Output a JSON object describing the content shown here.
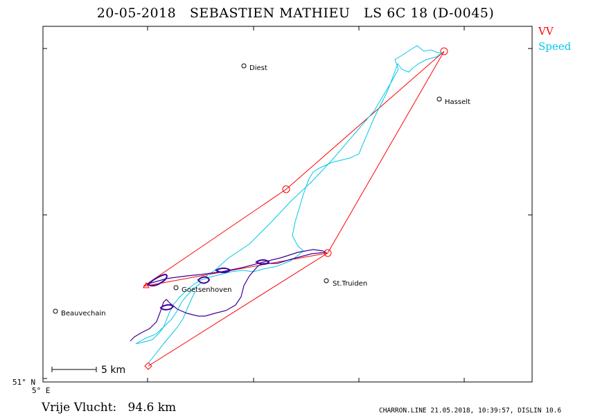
{
  "title": "20-05-2018   SEBASTIEN MATHIEU   LS 6C 18 (D-0045)",
  "legend": {
    "vv": "VV",
    "speed": "Speed",
    "vv_color": "#ff0000",
    "speed_color": "#00c8e8",
    "climb_color": "#3c0096"
  },
  "axes": {
    "lat_label": "51° N",
    "lon_label": "5° E"
  },
  "places": [
    {
      "name": "Diest"
    },
    {
      "name": "Hasselt"
    },
    {
      "name": "St.Truiden"
    },
    {
      "name": "Goetsenhoven"
    },
    {
      "name": "Beauvechain"
    }
  ],
  "scale": {
    "label": "5  km"
  },
  "distance": {
    "label": "Vrije Vlucht:",
    "value": "94.6 km"
  },
  "footer": "CHARRON.LINE 21.05.2018, 10:39:57, DISLIN 10.6"
}
